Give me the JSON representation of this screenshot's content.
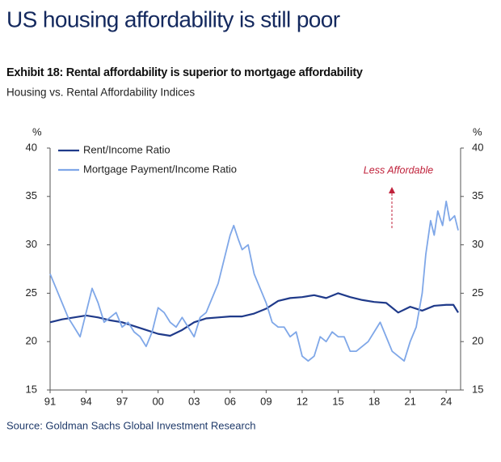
{
  "header": {
    "title": "US housing affordability is still poor"
  },
  "chart_data": {
    "type": "line",
    "title": "Exhibit 18: Rental affordability is superior to mortgage affordability",
    "subtitle": "Housing vs. Rental Affordability Indices",
    "y_unit": "%",
    "y2_unit": "%",
    "annotation": "Less Affordable",
    "source": "Source: Goldman Sachs Global Investment Research",
    "xlim": [
      1991,
      2025.2
    ],
    "xticks": [
      {
        "value": 1991,
        "label": "91"
      },
      {
        "value": 1994,
        "label": "94"
      },
      {
        "value": 1997,
        "label": "97"
      },
      {
        "value": 2000,
        "label": "00"
      },
      {
        "value": 2003,
        "label": "03"
      },
      {
        "value": 2006,
        "label": "06"
      },
      {
        "value": 2009,
        "label": "09"
      },
      {
        "value": 2012,
        "label": "12"
      },
      {
        "value": 2015,
        "label": "15"
      },
      {
        "value": 2018,
        "label": "18"
      },
      {
        "value": 2021,
        "label": "21"
      },
      {
        "value": 2024,
        "label": "24"
      }
    ],
    "ylim": [
      15,
      40
    ],
    "yticks": [
      15,
      20,
      25,
      30,
      35,
      40
    ],
    "y2lim": [
      15,
      40
    ],
    "y2ticks": [
      15,
      20,
      25,
      30,
      35,
      40
    ],
    "legend": "top-left",
    "series": [
      {
        "name": "Rent/Income Ratio",
        "color": "#1f3a8a",
        "x": [
          1991,
          1992,
          1993,
          1994,
          1995,
          1996,
          1997,
          1998,
          1999,
          2000,
          2001,
          2002,
          2003,
          2004,
          2005,
          2006,
          2007,
          2008,
          2009,
          2010,
          2011,
          2012,
          2013,
          2014,
          2015,
          2016,
          2017,
          2018,
          2019,
          2020,
          2021,
          2022,
          2023,
          2024,
          2024.6,
          2025
        ],
        "values": [
          22.0,
          22.3,
          22.5,
          22.7,
          22.5,
          22.2,
          22.0,
          21.6,
          21.2,
          20.8,
          20.6,
          21.2,
          22.0,
          22.4,
          22.5,
          22.6,
          22.6,
          22.9,
          23.4,
          24.2,
          24.5,
          24.6,
          24.8,
          24.5,
          25.0,
          24.6,
          24.3,
          24.1,
          24.0,
          23.0,
          23.6,
          23.2,
          23.7,
          23.8,
          23.8,
          23.0
        ]
      },
      {
        "name": "Mortgage Payment/Income Ratio",
        "color": "#7fa7e8",
        "x": [
          1991,
          1991.5,
          1992,
          1992.5,
          1993,
          1993.5,
          1994,
          1994.5,
          1995,
          1995.5,
          1996,
          1996.5,
          1997,
          1997.5,
          1998,
          1998.5,
          1999,
          1999.5,
          2000,
          2000.5,
          2001,
          2001.5,
          2002,
          2002.5,
          2003,
          2003.5,
          2004,
          2004.5,
          2005,
          2005.5,
          2006,
          2006.3,
          2006.7,
          2007,
          2007.5,
          2008,
          2008.5,
          2009,
          2009.5,
          2010,
          2010.5,
          2011,
          2011.5,
          2012,
          2012.5,
          2013,
          2013.5,
          2014,
          2014.5,
          2015,
          2015.5,
          2016,
          2016.5,
          2017,
          2017.5,
          2018,
          2018.5,
          2019,
          2019.5,
          2020,
          2020.5,
          2021,
          2021.5,
          2022,
          2022.3,
          2022.7,
          2023,
          2023.3,
          2023.7,
          2024,
          2024.3,
          2024.7,
          2025
        ],
        "values": [
          27,
          25.5,
          24,
          22.5,
          21.5,
          20.5,
          23,
          25.5,
          24,
          22,
          22.5,
          23,
          21.5,
          22,
          21,
          20.5,
          19.5,
          21,
          23.5,
          23,
          22,
          21.5,
          22.5,
          21.5,
          20.5,
          22.5,
          23,
          24.5,
          26,
          28.5,
          31,
          32,
          30.5,
          29.5,
          30,
          27,
          25.5,
          24,
          22,
          21.5,
          21.5,
          20.5,
          21,
          18.5,
          18,
          18.5,
          20.5,
          20,
          21,
          20.5,
          20.5,
          19,
          19,
          19.5,
          20,
          21,
          22,
          20.5,
          19,
          18.5,
          18,
          20,
          21.5,
          25,
          29,
          32.5,
          31,
          33.5,
          32,
          34.5,
          32.5,
          33,
          31.5
        ]
      }
    ]
  }
}
